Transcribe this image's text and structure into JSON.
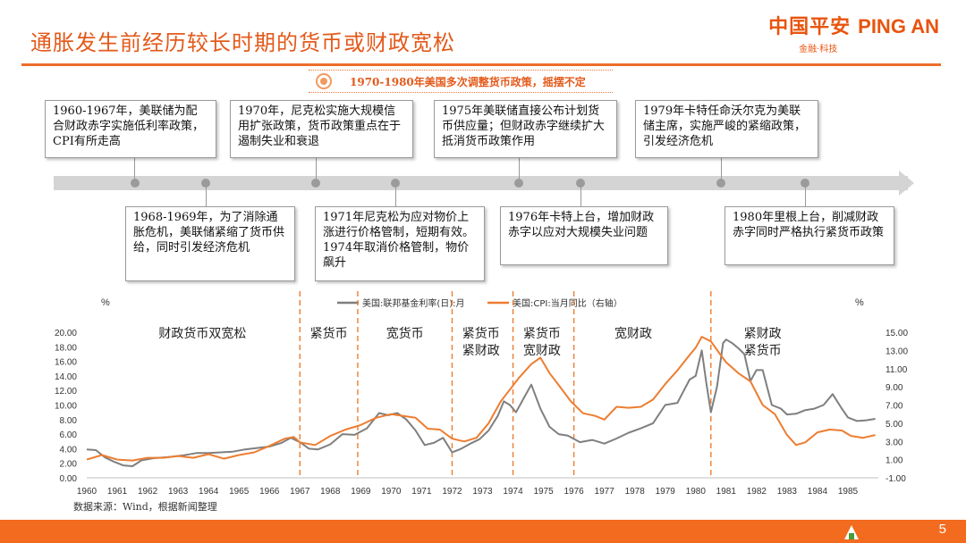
{
  "header": {
    "title": "通胀发生前经历较长时期的货币或财政宽松",
    "subtitle": "1970-1980年美国多次调整货币政策，摇摆不定",
    "logo_cn": "中国平安",
    "logo_en": "PING AN",
    "logo_sub": "金融·科技"
  },
  "notes": {
    "n1960": "1960-1967年，美联储为配合财政赤字实施低利率政策，CPI有所走高",
    "n1968": "1968-1969年，为了消除通胀危机，美联储紧缩了货币供给，同时引发经济危机",
    "n1970": "1970年，尼克松实施大规模信用扩张政策，货币政策重点在于遏制失业和衰退",
    "n1971": "1971年尼克松为应对物价上涨进行价格管制，短期有效。1974年取消价格管制，物价飙升",
    "n1975": "1975年美联储直接公布计划货币供应量；但财政赤字继续扩大抵消货币政策作用",
    "n1976": "1976年卡特上台，增加财政赤字以应对大规模失业问题",
    "n1979": "1979年卡特任命沃尔克为美联储主席，实施严峻的紧缩政策，引发经济危机",
    "n1980": "1980年里根上台，削减财政赤字同时严格执行紧货币政策"
  },
  "colors": {
    "accent": "#e35a1b",
    "fedfunds": "#7f7f7f",
    "cpi": "#ed7d31",
    "divider": "#ed7d31"
  },
  "footer": {
    "source": "数据来源：Wind，根据新闻整理",
    "page": "5"
  },
  "chart_data": {
    "type": "line",
    "left_unit": "%",
    "right_unit": "%",
    "series": [
      {
        "name": "美国:联邦基金利率(日):月",
        "axis": "left",
        "x": [
          1960.0,
          1960.3,
          1960.6,
          1960.9,
          1961.2,
          1961.5,
          1961.8,
          1962.2,
          1962.5,
          1962.8,
          1963.2,
          1963.6,
          1964.0,
          1964.4,
          1964.8,
          1965.2,
          1965.6,
          1966.0,
          1966.4,
          1966.7,
          1967.0,
          1967.3,
          1967.6,
          1968.0,
          1968.4,
          1968.8,
          1969.2,
          1969.6,
          1969.9,
          1970.2,
          1970.5,
          1970.8,
          1971.1,
          1971.4,
          1971.7,
          1972.0,
          1972.3,
          1972.6,
          1972.9,
          1973.2,
          1973.5,
          1973.7,
          1973.9,
          1974.1,
          1974.4,
          1974.6,
          1974.9,
          1975.2,
          1975.5,
          1975.8,
          1976.2,
          1976.6,
          1977.0,
          1977.4,
          1977.8,
          1978.2,
          1978.6,
          1979.0,
          1979.4,
          1979.8,
          1980.0,
          1980.2,
          1980.35,
          1980.5,
          1980.7,
          1980.9,
          1981.0,
          1981.2,
          1981.4,
          1981.6,
          1981.8,
          1982.0,
          1982.2,
          1982.5,
          1982.8,
          1983.0,
          1983.3,
          1983.6,
          1983.9,
          1984.2,
          1984.5,
          1984.8,
          1985.0,
          1985.3,
          1985.6,
          1985.9
        ],
        "values": [
          3.9,
          3.8,
          2.8,
          2.2,
          1.7,
          1.6,
          2.4,
          2.7,
          2.8,
          2.9,
          3.1,
          3.4,
          3.4,
          3.5,
          3.6,
          3.9,
          4.1,
          4.3,
          4.8,
          5.5,
          4.9,
          4.0,
          3.9,
          4.6,
          6.0,
          5.9,
          6.8,
          8.9,
          8.6,
          8.9,
          8.0,
          6.5,
          4.5,
          4.8,
          5.5,
          3.5,
          4.0,
          4.7,
          5.3,
          6.5,
          8.5,
          10.5,
          10.0,
          9.0,
          11.3,
          12.8,
          9.5,
          7.0,
          6.0,
          5.8,
          4.9,
          5.2,
          4.7,
          5.4,
          6.2,
          6.8,
          7.5,
          10.0,
          10.3,
          13.5,
          14.0,
          17.5,
          13.0,
          9.0,
          12.5,
          18.5,
          19.0,
          18.5,
          17.8,
          17.0,
          13.3,
          14.8,
          14.8,
          10.0,
          9.5,
          8.7,
          8.8,
          9.3,
          9.5,
          10.0,
          11.5,
          9.5,
          8.3,
          7.8,
          7.9,
          8.1
        ]
      },
      {
        "name": "美国:CPI:当月同比（右轴）",
        "axis": "right",
        "x": [
          1960.0,
          1960.5,
          1961.0,
          1961.5,
          1962.0,
          1962.5,
          1963.0,
          1963.5,
          1964.0,
          1964.5,
          1965.0,
          1965.5,
          1966.0,
          1966.5,
          1966.8,
          1967.0,
          1967.5,
          1968.0,
          1968.5,
          1969.0,
          1969.5,
          1970.0,
          1970.4,
          1970.8,
          1971.2,
          1971.6,
          1972.0,
          1972.4,
          1972.8,
          1973.2,
          1973.6,
          1973.9,
          1974.2,
          1974.6,
          1974.9,
          1975.2,
          1975.5,
          1975.9,
          1976.3,
          1976.7,
          1977.0,
          1977.4,
          1977.8,
          1978.2,
          1978.6,
          1979.0,
          1979.4,
          1979.8,
          1980.0,
          1980.2,
          1980.5,
          1980.8,
          1981.0,
          1981.4,
          1981.8,
          1982.2,
          1982.6,
          1983.0,
          1983.3,
          1983.6,
          1984.0,
          1984.4,
          1984.8,
          1985.1,
          1985.5,
          1985.9
        ],
        "values": [
          1.0,
          1.5,
          1.0,
          0.9,
          1.2,
          1.2,
          1.4,
          1.2,
          1.6,
          1.1,
          1.5,
          1.8,
          2.5,
          3.3,
          3.5,
          2.9,
          2.6,
          3.6,
          4.3,
          4.8,
          5.6,
          6.0,
          5.8,
          5.6,
          4.4,
          4.3,
          3.3,
          3.0,
          3.4,
          5.0,
          7.4,
          8.7,
          10.0,
          11.5,
          12.2,
          10.5,
          9.2,
          7.4,
          6.1,
          5.8,
          5.4,
          6.8,
          6.7,
          6.8,
          7.6,
          9.3,
          10.8,
          12.5,
          13.3,
          14.5,
          14.0,
          12.6,
          11.7,
          10.5,
          9.6,
          7.0,
          6.0,
          3.7,
          2.6,
          2.9,
          4.0,
          4.3,
          4.2,
          3.6,
          3.4,
          3.7
        ]
      }
    ],
    "left_axis": {
      "min": 0,
      "max": 20,
      "ticks": [
        "20.00",
        "18.00",
        "16.00",
        "14.00",
        "12.00",
        "10.00",
        "8.00",
        "6.00",
        "4.00",
        "2.00",
        "0.00"
      ]
    },
    "right_axis": {
      "min": -1,
      "max": 15,
      "ticks": [
        "15.00",
        "13.00",
        "11.00",
        "9.00",
        "7.00",
        "5.00",
        "3.00",
        "1.00",
        "-1.00"
      ]
    },
    "x_ticks": [
      "1960",
      "1961",
      "1962",
      "1963",
      "1964",
      "1965",
      "1966",
      "1967",
      "1968",
      "1969",
      "1970",
      "1971",
      "1972",
      "1973",
      "1974",
      "1975",
      "1976",
      "1977",
      "1978",
      "1979",
      "1980",
      "1981",
      "1982",
      "1983",
      "1984",
      "1985"
    ],
    "dividers": [
      1967.0,
      1968.9,
      1972.0,
      1974.0,
      1976.0,
      1980.5
    ],
    "phases": [
      {
        "lines": [
          "财政货币双宽松"
        ],
        "x": 1963.8
      },
      {
        "lines": [
          "紧货币"
        ],
        "x": 1967.95
      },
      {
        "lines": [
          "宽货币"
        ],
        "x": 1970.45
      },
      {
        "lines": [
          "紧货币",
          "紧财政"
        ],
        "x": 1972.95
      },
      {
        "lines": [
          "紧货币",
          "宽财政"
        ],
        "x": 1974.95
      },
      {
        "lines": [
          "宽财政"
        ],
        "x": 1977.95
      },
      {
        "lines": [
          "紧财政",
          "紧货币"
        ],
        "x": 1982.2
      }
    ],
    "legend_placement": "top-center",
    "grid": false
  }
}
